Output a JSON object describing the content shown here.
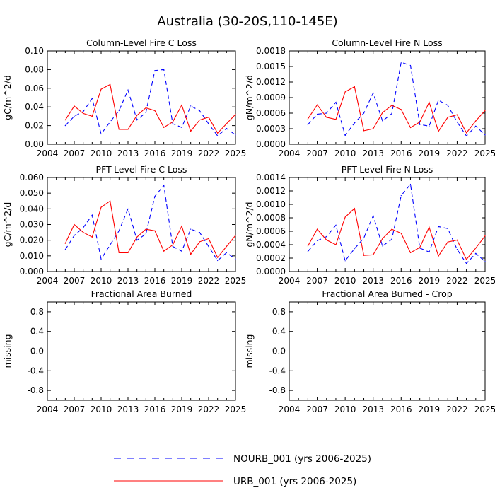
{
  "page_title": "Australia (30-20S,110-145E)",
  "legend": [
    {
      "label": "NOURB_001 (yrs 2006-2025)",
      "color": "#0000ff",
      "dash": true
    },
    {
      "label": "URB_001 (yrs 2006-2025)",
      "color": "#ff0000",
      "dash": false
    }
  ],
  "chart_data": [
    {
      "type": "line",
      "title": "Column-Level Fire C Loss",
      "ylabel": "gC/m^2/d",
      "xlim": [
        2004,
        2025
      ],
      "x_ticks": [
        2004,
        2007,
        2010,
        2013,
        2016,
        2019,
        2022,
        2025
      ],
      "ylim": [
        0,
        0.1
      ],
      "y_ticks": [
        "0.00",
        "0.02",
        "0.04",
        "0.06",
        "0.08",
        "0.10"
      ],
      "x": [
        2006,
        2007,
        2008,
        2009,
        2010,
        2011,
        2012,
        2013,
        2014,
        2015,
        2016,
        2017,
        2018,
        2019,
        2020,
        2021,
        2022,
        2023,
        2024,
        2025
      ],
      "series": [
        {
          "name": "NOURB_001 (yrs 2006-2025)",
          "color": "#0000ff",
          "dash": true,
          "values": [
            0.02,
            0.03,
            0.035,
            0.049,
            0.011,
            0.024,
            0.036,
            0.058,
            0.026,
            0.034,
            0.079,
            0.08,
            0.022,
            0.018,
            0.041,
            0.036,
            0.022,
            0.009,
            0.017,
            0.01
          ]
        },
        {
          "name": "URB_001 (yrs 2006-2025)",
          "color": "#ff0000",
          "dash": false,
          "values": [
            0.026,
            0.041,
            0.033,
            0.03,
            0.059,
            0.064,
            0.016,
            0.016,
            0.031,
            0.039,
            0.036,
            0.018,
            0.024,
            0.042,
            0.014,
            0.026,
            0.029,
            0.012,
            0.022,
            0.032
          ]
        }
      ]
    },
    {
      "type": "line",
      "title": "Column-Level Fire N Loss",
      "ylabel": "gN/m^2/d",
      "xlim": [
        2004,
        2025
      ],
      "x_ticks": [
        2004,
        2007,
        2010,
        2013,
        2016,
        2019,
        2022,
        2025
      ],
      "ylim": [
        0,
        0.0018
      ],
      "y_ticks": [
        "0.0000",
        "0.0003",
        "0.0006",
        "0.0009",
        "0.0012",
        "0.0015",
        "0.0018"
      ],
      "x": [
        2006,
        2007,
        2008,
        2009,
        2010,
        2011,
        2012,
        2013,
        2014,
        2015,
        2016,
        2017,
        2018,
        2019,
        2020,
        2021,
        2022,
        2023,
        2024,
        2025
      ],
      "series": [
        {
          "name": "NOURB_001 (yrs 2006-2025)",
          "color": "#0000ff",
          "dash": true,
          "values": [
            0.00038,
            0.00058,
            0.0006,
            0.00081,
            0.00017,
            0.00041,
            0.0006,
            0.00099,
            0.00045,
            0.00059,
            0.00158,
            0.00152,
            0.00038,
            0.00035,
            0.00085,
            0.00075,
            0.00043,
            0.00016,
            0.00035,
            0.00018
          ]
        },
        {
          "name": "URB_001 (yrs 2006-2025)",
          "color": "#ff0000",
          "dash": false,
          "values": [
            0.00049,
            0.00076,
            0.00052,
            0.00048,
            0.00101,
            0.00111,
            0.00026,
            0.0003,
            0.00061,
            0.00075,
            0.00067,
            0.00032,
            0.00043,
            0.00081,
            0.00025,
            0.00052,
            0.00057,
            0.00022,
            0.00045,
            0.00065
          ]
        }
      ]
    },
    {
      "type": "line",
      "title": "PFT-Level Fire C Loss",
      "ylabel": "gC/m^2/d",
      "xlim": [
        2004,
        2025
      ],
      "x_ticks": [
        2004,
        2007,
        2010,
        2013,
        2016,
        2019,
        2022,
        2025
      ],
      "ylim": [
        0,
        0.06
      ],
      "y_ticks": [
        "0.000",
        "0.010",
        "0.020",
        "0.030",
        "0.040",
        "0.050",
        "0.060"
      ],
      "x": [
        2006,
        2007,
        2008,
        2009,
        2010,
        2011,
        2012,
        2013,
        2014,
        2015,
        2016,
        2017,
        2018,
        2019,
        2020,
        2021,
        2022,
        2023,
        2024,
        2025
      ],
      "series": [
        {
          "name": "NOURB_001 (yrs 2006-2025)",
          "color": "#0000ff",
          "dash": true,
          "values": [
            0.014,
            0.023,
            0.028,
            0.036,
            0.008,
            0.017,
            0.026,
            0.04,
            0.02,
            0.024,
            0.048,
            0.055,
            0.016,
            0.013,
            0.027,
            0.025,
            0.016,
            0.007,
            0.012,
            0.008
          ]
        },
        {
          "name": "URB_001 (yrs 2006-2025)",
          "color": "#ff0000",
          "dash": false,
          "values": [
            0.018,
            0.03,
            0.025,
            0.022,
            0.041,
            0.045,
            0.012,
            0.012,
            0.022,
            0.027,
            0.026,
            0.013,
            0.017,
            0.029,
            0.011,
            0.019,
            0.021,
            0.009,
            0.016,
            0.023
          ]
        }
      ]
    },
    {
      "type": "line",
      "title": "PFT-Level Fire N Loss",
      "ylabel": "gN/m^2/d",
      "xlim": [
        2004,
        2025
      ],
      "x_ticks": [
        2004,
        2007,
        2010,
        2013,
        2016,
        2019,
        2022,
        2025
      ],
      "ylim": [
        0,
        0.0014
      ],
      "y_ticks": [
        "0.0000",
        "0.0002",
        "0.0004",
        "0.0006",
        "0.0008",
        "0.0010",
        "0.0012",
        "0.0014"
      ],
      "x": [
        2006,
        2007,
        2008,
        2009,
        2010,
        2011,
        2012,
        2013,
        2014,
        2015,
        2016,
        2017,
        2018,
        2019,
        2020,
        2021,
        2022,
        2023,
        2024,
        2025
      ],
      "series": [
        {
          "name": "NOURB_001 (yrs 2006-2025)",
          "color": "#0000ff",
          "dash": true,
          "values": [
            0.0003,
            0.00046,
            0.00052,
            0.00069,
            0.00016,
            0.00034,
            0.0005,
            0.00083,
            0.00038,
            0.00048,
            0.00113,
            0.0013,
            0.00035,
            0.00029,
            0.00067,
            0.00064,
            0.00033,
            0.00012,
            0.00027,
            0.00015
          ]
        },
        {
          "name": "URB_001 (yrs 2006-2025)",
          "color": "#ff0000",
          "dash": false,
          "values": [
            0.00038,
            0.00063,
            0.00047,
            0.0004,
            0.00081,
            0.00094,
            0.00024,
            0.00025,
            0.00049,
            0.00063,
            0.00057,
            0.00028,
            0.00036,
            0.00066,
            0.00023,
            0.00044,
            0.00047,
            0.00018,
            0.00035,
            0.00053
          ]
        }
      ]
    },
    {
      "type": "line",
      "title": "Fractional Area Burned",
      "ylabel": "missing",
      "xlim": [
        2004,
        2025
      ],
      "x_ticks": [
        2004,
        2007,
        2010,
        2013,
        2016,
        2019,
        2022,
        2025
      ],
      "ylim": [
        -1,
        1
      ],
      "y_ticks": [
        "-0.8",
        "-0.4",
        "0.0",
        "0.4",
        "0.8"
      ],
      "y_tick_values": [
        -0.8,
        -0.4,
        0.0,
        0.4,
        0.8
      ],
      "series": []
    },
    {
      "type": "line",
      "title": "Fractional Area Burned - Crop",
      "ylabel": "missing",
      "xlim": [
        2004,
        2025
      ],
      "x_ticks": [
        2004,
        2007,
        2010,
        2013,
        2016,
        2019,
        2022,
        2025
      ],
      "ylim": [
        -1,
        1
      ],
      "y_ticks": [
        "-0.8",
        "-0.4",
        "0.0",
        "0.4",
        "0.8"
      ],
      "y_tick_values": [
        -0.8,
        -0.4,
        0.0,
        0.4,
        0.8
      ],
      "series": []
    }
  ]
}
